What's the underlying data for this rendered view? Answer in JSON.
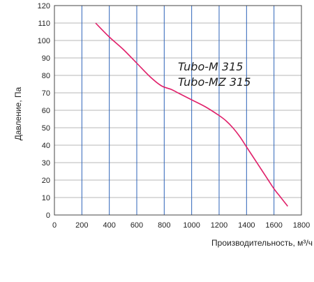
{
  "chart_data": {
    "type": "line",
    "xlabel": "Производительность, м³/ч",
    "ylabel": "Давление, Па",
    "xlim": [
      0,
      1800
    ],
    "ylim": [
      0,
      120
    ],
    "x_ticks": [
      "0",
      "200",
      "400",
      "600",
      "800",
      "1000",
      "1200",
      "1400",
      "1600",
      "1800"
    ],
    "y_ticks": [
      "0",
      "10",
      "20",
      "30",
      "40",
      "50",
      "60",
      "70",
      "80",
      "90",
      "100",
      "110",
      "120"
    ],
    "grid": true,
    "annotations": [
      "Tubo-M 315",
      "Tubo-MZ 315"
    ],
    "series": [
      {
        "color": "#e0206a",
        "x": [
          300,
          400,
          500,
          600,
          700,
          780,
          850,
          900,
          1000,
          1100,
          1200,
          1250,
          1300,
          1350,
          1400,
          1450,
          1500,
          1550,
          1600,
          1650,
          1700
        ],
        "y": [
          110,
          102,
          95,
          87,
          79,
          74,
          72,
          70,
          66,
          62,
          57,
          54,
          50,
          45,
          39,
          33,
          27,
          21,
          15,
          10,
          5
        ]
      }
    ]
  },
  "colors": {
    "grid_vertical": "#2c63b8",
    "grid_horizontal": "#b7b7b7",
    "axis": "#444444"
  }
}
